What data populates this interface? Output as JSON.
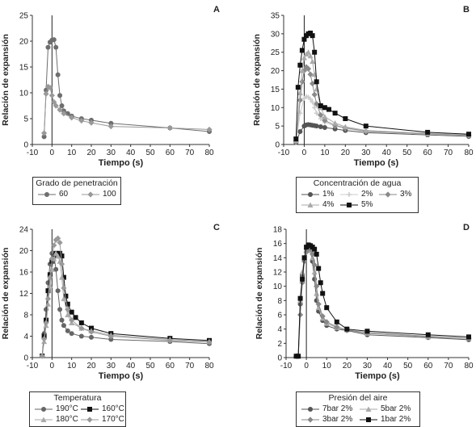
{
  "charts": [
    {
      "type": "line",
      "title": "A",
      "xlabel": "Tiempo (s)",
      "ylabel": "Relación de expansión",
      "xlim": [
        -10,
        80
      ],
      "ylim": [
        0,
        25
      ],
      "xticks": [
        -10,
        0,
        10,
        20,
        30,
        40,
        50,
        60,
        70,
        80
      ],
      "yticks": [
        0,
        5,
        10,
        15,
        20,
        25
      ],
      "legend_title": "Grado de penetración",
      "series": [
        {
          "name": "60",
          "marker": "circle",
          "color": "#6e6e6e",
          "x": [
            -4,
            -3,
            -2,
            -1,
            0,
            1,
            2,
            3,
            4,
            5,
            6,
            8,
            10,
            15,
            20,
            30,
            60,
            80
          ],
          "y": [
            1.5,
            10.5,
            18.8,
            19.8,
            20.2,
            20.3,
            18.8,
            13.5,
            9.5,
            7.5,
            6.5,
            6.0,
            5.5,
            5.0,
            4.7,
            4.1,
            3.2,
            2.5
          ]
        },
        {
          "name": "100",
          "marker": "diamond",
          "color": "#999999",
          "x": [
            -4,
            -3,
            -2,
            -1,
            0,
            1,
            2,
            4,
            6,
            10,
            15,
            20,
            30,
            60,
            80
          ],
          "y": [
            2.2,
            9.8,
            11.2,
            11.0,
            9.5,
            8.2,
            7.5,
            6.7,
            6.0,
            5.2,
            4.6,
            4.2,
            3.5,
            3.2,
            2.9
          ]
        }
      ]
    },
    {
      "type": "line",
      "title": "B",
      "xlabel": "Tiempo (s)",
      "ylabel": "Relación de expansión",
      "xlim": [
        -10,
        80
      ],
      "ylim": [
        0,
        35
      ],
      "xticks": [
        -10,
        0,
        10,
        20,
        30,
        40,
        50,
        60,
        70,
        80
      ],
      "yticks": [
        0,
        5,
        10,
        15,
        20,
        25,
        30,
        35
      ],
      "legend_title": "Concentración de agua",
      "series": [
        {
          "name": "1%",
          "marker": "circle",
          "color": "#555555",
          "x": [
            -4,
            -2,
            0,
            1,
            2,
            3,
            4,
            5,
            6,
            8,
            10,
            15,
            20,
            30,
            60,
            80
          ],
          "y": [
            0.5,
            3.5,
            5.0,
            5.3,
            5.4,
            5.3,
            5.2,
            5.1,
            5.0,
            4.8,
            4.6,
            4.2,
            3.8,
            3.2,
            2.6,
            2.2
          ]
        },
        {
          "name": "2%",
          "marker": "cross",
          "color": "#cccccc",
          "x": [
            -4,
            -2,
            0,
            1,
            2,
            3,
            4,
            5,
            6,
            8,
            10,
            15,
            20,
            30,
            60,
            80
          ],
          "y": [
            0.5,
            8.5,
            12.5,
            13.0,
            12.8,
            12.3,
            11.5,
            10.0,
            8.5,
            7.0,
            6.0,
            5.0,
            4.3,
            3.5,
            2.8,
            2.4
          ]
        },
        {
          "name": "3%",
          "marker": "diamond",
          "color": "#8a8a8a",
          "x": [
            -4,
            -2,
            -1,
            0,
            1,
            2,
            3,
            4,
            5,
            6,
            8,
            10,
            15,
            20,
            30,
            60,
            80
          ],
          "y": [
            0.8,
            12.0,
            17.0,
            20.0,
            21.0,
            20.5,
            19.0,
            16.5,
            13.5,
            11.0,
            8.0,
            6.5,
            5.2,
            4.5,
            3.6,
            2.9,
            2.5
          ]
        },
        {
          "name": "4%",
          "marker": "triangle",
          "color": "#aaaaaa",
          "x": [
            -4,
            -2,
            -1,
            0,
            1,
            2,
            3,
            4,
            5,
            6,
            8,
            10,
            15,
            20,
            30,
            60,
            80
          ],
          "y": [
            1.0,
            14.0,
            20.0,
            23.5,
            24.5,
            25.0,
            24.0,
            22.5,
            19.0,
            15.0,
            10.0,
            7.5,
            5.8,
            4.8,
            3.8,
            3.0,
            2.6
          ]
        },
        {
          "name": "5%",
          "marker": "square",
          "color": "#111111",
          "x": [
            -4,
            -3,
            -2,
            -1,
            0,
            1,
            2,
            3,
            4,
            5,
            6,
            8,
            10,
            12,
            15,
            20,
            30,
            60,
            80
          ],
          "y": [
            1.5,
            15.5,
            21.5,
            25.5,
            28.5,
            29.5,
            30.0,
            30.2,
            29.5,
            25.0,
            17.0,
            10.5,
            10.0,
            9.5,
            8.5,
            7.0,
            5.0,
            3.3,
            2.8
          ]
        }
      ]
    },
    {
      "type": "line",
      "title": "C",
      "xlabel": "Tiempo (s)",
      "ylabel": "Relación de expansión",
      "xlim": [
        -10,
        80
      ],
      "ylim": [
        0,
        24
      ],
      "xticks": [
        -10,
        0,
        10,
        20,
        30,
        40,
        50,
        60,
        70,
        80
      ],
      "yticks": [
        0,
        4,
        8,
        12,
        16,
        20,
        24
      ],
      "legend_title": "Temperatura",
      "series": [
        {
          "name": "190°C",
          "marker": "circle",
          "color": "#666666",
          "x": [
            -5,
            -4,
            -3,
            -2,
            -1,
            0,
            1,
            2,
            3,
            4,
            5,
            6,
            8,
            10,
            15,
            20,
            30,
            60,
            80
          ],
          "y": [
            0.3,
            4.5,
            9.0,
            14.0,
            17.5,
            19.5,
            19.0,
            16.5,
            12.5,
            9.0,
            7.0,
            6.0,
            5.0,
            4.5,
            4.0,
            3.8,
            3.4,
            3.0,
            2.6
          ]
        },
        {
          "name": "160°C",
          "marker": "square",
          "color": "#111111",
          "x": [
            -5,
            -4,
            -3,
            -2,
            -1,
            0,
            1,
            2,
            3,
            4,
            5,
            6,
            7,
            8,
            10,
            12,
            15,
            20,
            30,
            60,
            80
          ],
          "y": [
            0.3,
            4.0,
            7.0,
            12.5,
            15.5,
            18.0,
            19.0,
            19.5,
            19.0,
            19.5,
            19.0,
            15.0,
            11.5,
            10.0,
            8.5,
            7.5,
            6.5,
            5.5,
            4.5,
            3.6,
            3.2
          ]
        },
        {
          "name": "180°C",
          "marker": "triangle",
          "color": "#aaaaaa",
          "x": [
            -5,
            -4,
            -3,
            -2,
            -1,
            0,
            1,
            2,
            3,
            4,
            5,
            6,
            8,
            10,
            15,
            20,
            30,
            60,
            80
          ],
          "y": [
            0.3,
            3.0,
            6.0,
            10.0,
            13.5,
            16.5,
            18.5,
            19.5,
            19.0,
            18.0,
            15.0,
            11.0,
            8.0,
            6.5,
            5.5,
            5.0,
            4.2,
            3.4,
            3.0
          ]
        },
        {
          "name": "170°C",
          "marker": "diamond",
          "color": "#999999",
          "x": [
            -5,
            -4,
            -3,
            -2,
            -1,
            0,
            1,
            2,
            3,
            4,
            5,
            6,
            8,
            10,
            15,
            20,
            30,
            60,
            80
          ],
          "y": [
            0.3,
            3.5,
            6.5,
            11.0,
            15.0,
            18.5,
            21.0,
            22.0,
            22.3,
            21.5,
            17.5,
            13.0,
            9.0,
            7.0,
            5.5,
            4.8,
            4.0,
            3.2,
            2.9
          ]
        }
      ]
    },
    {
      "type": "line",
      "title": "D",
      "xlabel": "Tiempo (s)",
      "ylabel": "Relación de expansión",
      "xlim": [
        -10,
        80
      ],
      "ylim": [
        0,
        18
      ],
      "xticks": [
        -10,
        0,
        10,
        20,
        30,
        40,
        50,
        60,
        70,
        80
      ],
      "yticks": [
        0,
        2,
        4,
        6,
        8,
        10,
        12,
        14,
        16,
        18
      ],
      "legend_title": "Presión del aire",
      "series": [
        {
          "name": "7bar 2%",
          "marker": "circle",
          "color": "#555555",
          "x": [
            -5,
            -4,
            -3,
            -2,
            -1,
            0,
            1,
            2,
            3,
            4,
            5,
            6,
            8,
            10,
            15,
            20,
            30,
            60,
            80
          ],
          "y": [
            0.2,
            0.2,
            7.5,
            11.5,
            13.8,
            15.2,
            15.5,
            15.0,
            13.5,
            11.0,
            8.0,
            6.5,
            5.2,
            4.5,
            4.0,
            3.8,
            3.2,
            2.8,
            2.5
          ]
        },
        {
          "name": "5bar 2%",
          "marker": "triangle",
          "color": "#aaaaaa",
          "x": [
            -5,
            -4,
            -3,
            -2,
            -1,
            0,
            1,
            2,
            3,
            4,
            5,
            6,
            8,
            10,
            15,
            20,
            30,
            60,
            80
          ],
          "y": [
            0.2,
            0.2,
            8.0,
            12.0,
            14.0,
            15.0,
            15.3,
            15.0,
            14.0,
            12.0,
            9.0,
            7.0,
            5.5,
            4.8,
            4.2,
            3.9,
            3.4,
            2.9,
            2.7
          ]
        },
        {
          "name": "3bar 2%",
          "marker": "diamond",
          "color": "#888888",
          "x": [
            -5,
            -4,
            -3,
            -2,
            -1,
            0,
            1,
            2,
            3,
            4,
            5,
            6,
            8,
            10,
            15,
            20,
            30,
            60,
            80
          ],
          "y": [
            0.2,
            0.2,
            6.0,
            10.5,
            13.5,
            14.8,
            15.3,
            15.2,
            14.5,
            13.0,
            10.0,
            7.5,
            5.8,
            5.0,
            4.3,
            3.9,
            3.5,
            3.0,
            2.7
          ]
        },
        {
          "name": "1bar 2%",
          "marker": "square",
          "color": "#111111",
          "x": [
            -5,
            -4,
            -3,
            -2,
            -1,
            0,
            1,
            2,
            3,
            4,
            5,
            6,
            7,
            8,
            10,
            15,
            20,
            30,
            60,
            80
          ],
          "y": [
            0.2,
            0.2,
            8.3,
            11.0,
            14.0,
            15.5,
            15.8,
            15.7,
            15.5,
            15.2,
            14.5,
            12.5,
            10.5,
            9.0,
            7.0,
            5.0,
            4.0,
            3.7,
            3.2,
            2.9
          ]
        }
      ]
    }
  ]
}
